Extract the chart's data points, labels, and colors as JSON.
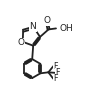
{
  "bg_color": "#ffffff",
  "line_color": "#222222",
  "line_width": 1.3,
  "font_size_atom": 6.5,
  "font_size_small": 5.8,
  "figsize": [
    1.11,
    1.08
  ],
  "dpi": 100,
  "xlim": [
    0,
    11
  ],
  "ylim": [
    0,
    10.5
  ]
}
